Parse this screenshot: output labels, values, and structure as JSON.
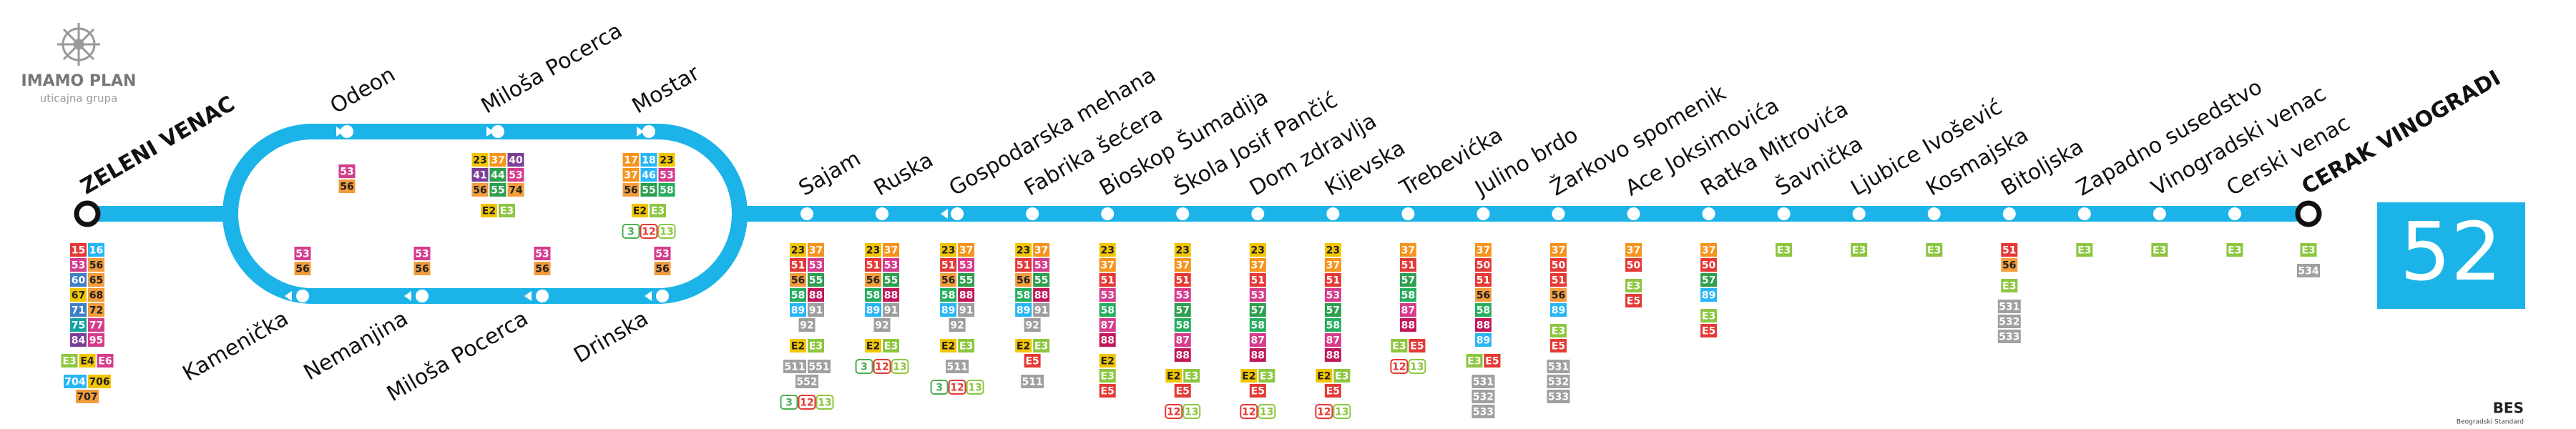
{
  "logo": {
    "title": "IMAMO PLAN",
    "subtitle": "uticajna grupa"
  },
  "line_number": "52",
  "termini": [
    {
      "name": "ZELENI VENAC",
      "transfers": [
        [
          "15",
          "16"
        ],
        [
          "53",
          "56"
        ],
        [
          "60",
          "65"
        ],
        [
          "67",
          "68"
        ],
        [
          "71",
          "72"
        ],
        [
          "75",
          "77"
        ],
        [
          "84",
          "95"
        ],
        [
          "E3",
          "E4",
          "E6"
        ],
        [
          "704",
          "706"
        ],
        [
          "707"
        ]
      ]
    },
    {
      "name": "CERAK VINOGRADI",
      "transfers": [
        [
          "E3"
        ],
        [
          "534"
        ]
      ]
    }
  ],
  "loop_top": [
    {
      "name": "Odeon",
      "transfers": [
        [
          "53"
        ],
        [
          "56"
        ]
      ]
    },
    {
      "name": "Miloša Pocerca",
      "transfers": [
        [
          "23",
          "37",
          "40"
        ],
        [
          "41",
          "44",
          "53"
        ],
        [
          "56",
          "55",
          "74"
        ],
        [
          "E2",
          "E3"
        ]
      ]
    },
    {
      "name": "Mostar",
      "transfers": [
        [
          "17",
          "18",
          "23"
        ],
        [
          "37",
          "46",
          "53"
        ],
        [
          "56",
          "55",
          "58"
        ],
        [
          "E2",
          "E3"
        ],
        [
          "3",
          "12",
          "13"
        ]
      ]
    }
  ],
  "loop_bottom": [
    {
      "name": "Kamenička",
      "transfers": [
        [
          "53"
        ],
        [
          "56"
        ]
      ]
    },
    {
      "name": "Nemanjina",
      "transfers": [
        [
          "53"
        ],
        [
          "56"
        ]
      ]
    },
    {
      "name": "Miloša Pocerca",
      "transfers": [
        [
          "53"
        ],
        [
          "56"
        ]
      ]
    },
    {
      "name": "Drinska",
      "transfers": [
        [
          "53"
        ],
        [
          "56"
        ]
      ]
    }
  ],
  "stops": [
    {
      "name": "Sajam",
      "transfers": [
        [
          "23",
          "37"
        ],
        [
          "51",
          "53"
        ],
        [
          "56",
          "55"
        ],
        [
          "58",
          "88"
        ],
        [
          "89",
          "91"
        ],
        [
          "92"
        ],
        [
          "E2",
          "E3"
        ],
        [
          "511",
          "551"
        ],
        [
          "552"
        ],
        [
          "3",
          "12",
          "13"
        ]
      ]
    },
    {
      "name": "Ruska",
      "transfers": [
        [
          "23",
          "37"
        ],
        [
          "51",
          "53"
        ],
        [
          "56",
          "55"
        ],
        [
          "58",
          "88"
        ],
        [
          "89",
          "91"
        ],
        [
          "92"
        ],
        [
          "E2",
          "E3"
        ],
        [
          "3",
          "12",
          "13"
        ]
      ]
    },
    {
      "name": "Gospodarska mehana",
      "transfers": [
        [
          "23",
          "37"
        ],
        [
          "51",
          "53"
        ],
        [
          "56",
          "55"
        ],
        [
          "58",
          "88"
        ],
        [
          "89",
          "91"
        ],
        [
          "92"
        ],
        [
          "E2",
          "E3"
        ],
        [
          "511"
        ],
        [
          "3",
          "12",
          "13"
        ]
      ]
    },
    {
      "name": "Fabrika šećera",
      "transfers": [
        [
          "23",
          "37"
        ],
        [
          "51",
          "53"
        ],
        [
          "56",
          "55"
        ],
        [
          "58",
          "88"
        ],
        [
          "89",
          "91"
        ],
        [
          "92"
        ],
        [
          "E2",
          "E3"
        ],
        [
          "E5"
        ],
        [
          "511"
        ]
      ]
    },
    {
      "name": "Bioskop Šumadija",
      "transfers": [
        [
          "23"
        ],
        [
          "37"
        ],
        [
          "51"
        ],
        [
          "53"
        ],
        [
          "58"
        ],
        [
          "87"
        ],
        [
          "88"
        ],
        [
          "E2"
        ],
        [
          "E3"
        ],
        [
          "E5"
        ]
      ]
    },
    {
      "name": "Škola Josif Pančić",
      "transfers": [
        [
          "23"
        ],
        [
          "37"
        ],
        [
          "51"
        ],
        [
          "53"
        ],
        [
          "57"
        ],
        [
          "58"
        ],
        [
          "87"
        ],
        [
          "88"
        ],
        [
          "E2",
          "E3"
        ],
        [
          "E5"
        ],
        [
          "12",
          "13"
        ]
      ]
    },
    {
      "name": "Dom zdravlja",
      "transfers": [
        [
          "23"
        ],
        [
          "37"
        ],
        [
          "51"
        ],
        [
          "53"
        ],
        [
          "57"
        ],
        [
          "58"
        ],
        [
          "87"
        ],
        [
          "88"
        ],
        [
          "E2",
          "E3"
        ],
        [
          "E5"
        ],
        [
          "12",
          "13"
        ]
      ]
    },
    {
      "name": "Kijevska",
      "transfers": [
        [
          "23"
        ],
        [
          "37"
        ],
        [
          "51"
        ],
        [
          "53"
        ],
        [
          "57"
        ],
        [
          "58"
        ],
        [
          "87"
        ],
        [
          "88"
        ],
        [
          "E2",
          "E3"
        ],
        [
          "E5"
        ],
        [
          "12",
          "13"
        ]
      ]
    },
    {
      "name": "Trebevićka",
      "transfers": [
        [
          "37"
        ],
        [
          "51"
        ],
        [
          "57"
        ],
        [
          "58"
        ],
        [
          "87"
        ],
        [
          "88"
        ],
        [
          "E3",
          "E5"
        ],
        [
          "12",
          "13"
        ]
      ]
    },
    {
      "name": "Julino brdo",
      "transfers": [
        [
          "37"
        ],
        [
          "50"
        ],
        [
          "51"
        ],
        [
          "56"
        ],
        [
          "58"
        ],
        [
          "88"
        ],
        [
          "89"
        ],
        [
          "E3",
          "E5"
        ],
        [
          "531"
        ],
        [
          "532"
        ],
        [
          "533"
        ]
      ]
    },
    {
      "name": "Žarkovo spomenik",
      "transfers": [
        [
          "37"
        ],
        [
          "50"
        ],
        [
          "51"
        ],
        [
          "56"
        ],
        [
          "89"
        ],
        [
          "E3"
        ],
        [
          "E5"
        ],
        [
          "531"
        ],
        [
          "532"
        ],
        [
          "533"
        ]
      ]
    },
    {
      "name": "Ace Joksimovića",
      "transfers": [
        [
          "37"
        ],
        [
          "50"
        ],
        [
          "E3"
        ],
        [
          "E5"
        ]
      ]
    },
    {
      "name": "Ratka Mitrovića",
      "transfers": [
        [
          "37"
        ],
        [
          "50"
        ],
        [
          "57"
        ],
        [
          "89"
        ],
        [
          "E3"
        ],
        [
          "E5"
        ]
      ]
    },
    {
      "name": "Šavnička",
      "transfers": [
        [
          "E3"
        ]
      ]
    },
    {
      "name": "Ljubice Ivošević",
      "transfers": [
        [
          "E3"
        ]
      ]
    },
    {
      "name": "Kosmajska",
      "transfers": [
        [
          "E3"
        ]
      ]
    },
    {
      "name": "Bitoljska",
      "transfers": [
        [
          "51"
        ],
        [
          "56"
        ],
        [
          "E3"
        ],
        [
          "531"
        ],
        [
          "532"
        ],
        [
          "533"
        ]
      ]
    },
    {
      "name": "Zapadno susedstvo",
      "transfers": [
        [
          "E3"
        ]
      ]
    },
    {
      "name": "Vinogradski venac",
      "transfers": [
        [
          "E3"
        ]
      ]
    },
    {
      "name": "Cerski venac",
      "transfers": [
        [
          "E3"
        ]
      ]
    }
  ],
  "line_color": "#1cb4e8",
  "route_colors": {
    "15": "#e53935",
    "16": "#29b6f6",
    "17": "#f7941d",
    "18": "#29b6f6",
    "23": "#f2c500",
    "37": "#f7941d",
    "40": "#7b3f98",
    "41": "#7b3f98",
    "44": "#2e9e4f",
    "46": "#29b6f6",
    "50": "#e53935",
    "51": "#e53935",
    "53": "#d63c8c",
    "55": "#2e9e4f",
    "56": "#f39c3c",
    "57": "#2e9e4f",
    "58": "#27ae60",
    "60": "#3f7fc4",
    "65": "#f39c3c",
    "67": "#f2c500",
    "68": "#f39c3c",
    "71": "#3f7fc4",
    "72": "#f39c3c",
    "74": "#f39c3c",
    "75": "#17a2a2",
    "77": "#d63c8c",
    "84": "#7b3f98",
    "87": "#d63c8c",
    "88": "#c2185b",
    "89": "#29b6f6",
    "91": "#9e9e9e",
    "92": "#9e9e9e",
    "95": "#d63c8c",
    "E2": "#f2c500",
    "E3": "#8dc63f",
    "E4": "#f2c500",
    "E5": "#e53935",
    "E6": "#d63c8c",
    "511": "#a0a0a0",
    "531": "#a0a0a0",
    "532": "#a0a0a0",
    "533": "#a0a0a0",
    "534": "#a0a0a0",
    "551": "#a0a0a0",
    "552": "#a0a0a0",
    "704": "#29b6f6",
    "706": "#f2c500",
    "707": "#f39c3c",
    "3": "#4caf50",
    "12": "#e53935",
    "13": "#8dc63f"
  },
  "outline_routes": [
    "3",
    "12",
    "13"
  ],
  "footer": {
    "brand": "BES",
    "subtitle": "Beogradski Standard"
  }
}
